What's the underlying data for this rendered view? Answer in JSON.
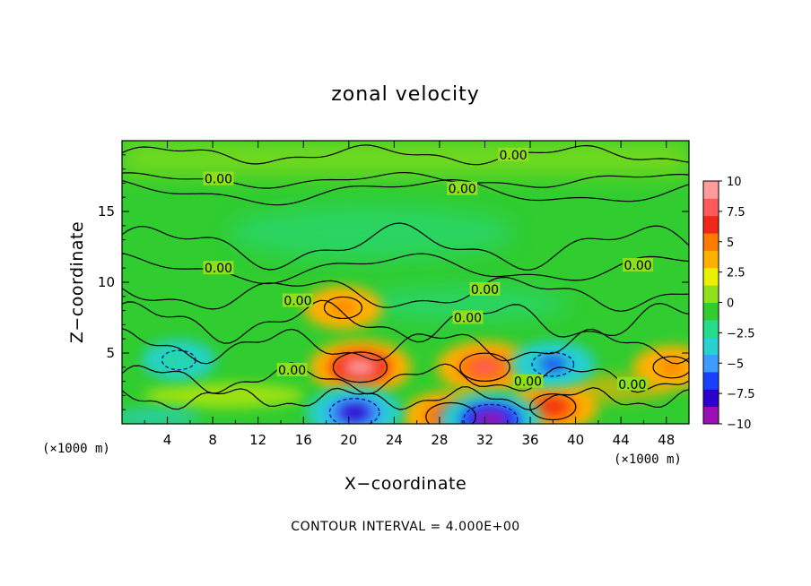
{
  "chart_data": {
    "type": "heatmap",
    "title": "zonal velocity",
    "xlabel": "X−coordinate",
    "ylabel": "Z−coordinate",
    "x_unit_left": "(×1000 m)",
    "x_unit_right": "(×1000 m)",
    "xlim": [
      0,
      50
    ],
    "ylim": [
      0,
      20
    ],
    "x_ticks": [
      4,
      8,
      12,
      16,
      20,
      24,
      28,
      32,
      36,
      40,
      44,
      48
    ],
    "y_ticks": [
      5,
      10,
      15
    ],
    "colorbar": {
      "range": [
        -10,
        10
      ],
      "ticks": [
        "10",
        "7.5",
        "5",
        "2.5",
        "0",
        "−2.5",
        "−5",
        "−7.5",
        "−10"
      ],
      "colors": [
        "#9b10b4",
        "#2d00cc",
        "#1a40ff",
        "#3c9cff",
        "#28d0d0",
        "#26dc8a",
        "#30cc30",
        "#8ee01c",
        "#e9f100",
        "#ffb000",
        "#ff7a00",
        "#f02818",
        "#ff5a5a",
        "#ff9b9b"
      ]
    },
    "background_value": 0,
    "features": [
      {
        "x": 21,
        "z": 4,
        "value": 9,
        "kind": "max"
      },
      {
        "x": 19.5,
        "z": 8.2,
        "value": 5,
        "kind": "max"
      },
      {
        "x": 32,
        "z": 4,
        "value": 8,
        "kind": "max"
      },
      {
        "x": 38,
        "z": 1.2,
        "value": 7,
        "kind": "max"
      },
      {
        "x": 29,
        "z": 0.5,
        "value": 8,
        "kind": "max"
      },
      {
        "x": 20.5,
        "z": 0.8,
        "value": -8,
        "kind": "min"
      },
      {
        "x": 32.5,
        "z": 0.3,
        "value": -9,
        "kind": "min"
      },
      {
        "x": 38,
        "z": 4.2,
        "value": -6,
        "kind": "min"
      },
      {
        "x": 5,
        "z": 4.5,
        "value": -4,
        "kind": "min"
      },
      {
        "x": 48.5,
        "z": 4,
        "value": 5,
        "kind": "max"
      }
    ],
    "contour_labels": [
      {
        "text": "0.00",
        "x": 34.5,
        "z": 19
      },
      {
        "text": "0.00",
        "x": 8.5,
        "z": 17.3
      },
      {
        "text": "0.00",
        "x": 30,
        "z": 16.6
      },
      {
        "text": "0.00",
        "x": 8.5,
        "z": 11
      },
      {
        "text": "0.00",
        "x": 45.5,
        "z": 11.2
      },
      {
        "text": "0.00",
        "x": 15.5,
        "z": 8.7
      },
      {
        "text": "0.00",
        "x": 32,
        "z": 9.5
      },
      {
        "text": "0.00",
        "x": 30.5,
        "z": 7.5
      },
      {
        "text": "0.00",
        "x": 15,
        "z": 3.8
      },
      {
        "text": "0.00",
        "x": 35.8,
        "z": 3
      },
      {
        "text": "0.00",
        "x": 45,
        "z": 2.8
      }
    ],
    "contour_interval_text": "CONTOUR INTERVAL = 4.000E+00"
  }
}
